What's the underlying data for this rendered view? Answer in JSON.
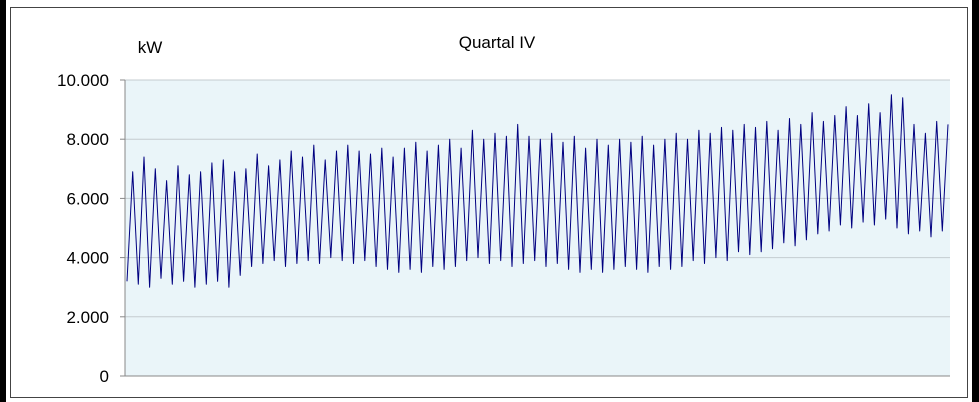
{
  "chart_data": {
    "type": "line",
    "title": "Quartal IV",
    "ylabel": "kW",
    "ylim": [
      0,
      10000
    ],
    "yticks": [
      0,
      2000,
      4000,
      6000,
      8000,
      10000
    ],
    "ytick_labels": [
      "0",
      "2.000",
      "4.000",
      "6.000",
      "8.000",
      "10.000"
    ],
    "grid": true,
    "legend": "none",
    "series": [
      {
        "color": "#000080",
        "values": [
          3200,
          6900,
          3100,
          7400,
          3000,
          7000,
          3300,
          6600,
          3100,
          7100,
          3200,
          6800,
          3000,
          6900,
          3100,
          7200,
          3200,
          7300,
          3000,
          6900,
          3400,
          7000,
          3700,
          7500,
          3800,
          7100,
          3900,
          7300,
          3700,
          7600,
          3800,
          7400,
          3900,
          7800,
          3800,
          7300,
          4000,
          7600,
          3900,
          7800,
          3800,
          7600,
          3900,
          7500,
          3700,
          7700,
          3600,
          7400,
          3500,
          7700,
          3600,
          7900,
          3500,
          7600,
          3700,
          7800,
          3600,
          8000,
          3700,
          7700,
          3900,
          8300,
          4000,
          8000,
          3800,
          8200,
          3900,
          8100,
          3700,
          8500,
          3800,
          8100,
          3900,
          8000,
          3700,
          8200,
          3800,
          7900,
          3600,
          8100,
          3500,
          7700,
          3600,
          8000,
          3500,
          7800,
          3600,
          8000,
          3700,
          7900,
          3600,
          8100,
          3500,
          7800,
          3700,
          8000,
          3600,
          8200,
          3700,
          8000,
          3900,
          8300,
          3800,
          8200,
          4000,
          8400,
          3900,
          8300,
          4200,
          8500,
          4100,
          8400,
          4200,
          8600,
          4300,
          8300,
          4500,
          8700,
          4400,
          8500,
          4600,
          8900,
          4800,
          8600,
          4900,
          8800,
          5100,
          9100,
          5000,
          8800,
          5200,
          9200,
          5100,
          8900,
          5300,
          9500,
          5000,
          9400,
          4800,
          8500,
          4900,
          8200,
          4700,
          8600,
          4900,
          8500
        ]
      }
    ]
  }
}
